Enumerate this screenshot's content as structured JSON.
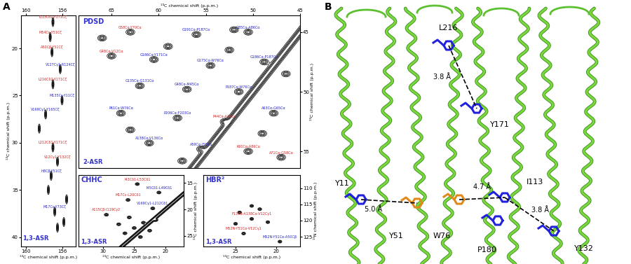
{
  "panel_labels": [
    "A",
    "B"
  ],
  "chart_data": [
    {
      "type": "contour",
      "subtitle": "1,3-ASR",
      "xlabel": "¹³C chemical shift (p.p.m.)",
      "ylabel": "¹³C chemical shift (p.p.m.)",
      "xlim": [
        160.5,
        154.5
      ],
      "ylim": [
        41,
        16.5
      ],
      "xticks": [
        160,
        156
      ],
      "yticks": [
        20,
        25,
        30,
        35,
        40
      ],
      "peaks": [
        {
          "x": 157.0,
          "y": 17.2,
          "label": "I113Cδ1-Y171Cζ",
          "color": "#d02020"
        },
        {
          "x": 157.3,
          "y": 18.8,
          "label": "M54Cε-Y51Cζ",
          "color": "#d02020"
        },
        {
          "x": 157.1,
          "y": 20.4,
          "label": "A50Cβ-Y51Cζ",
          "color": "#d02020"
        },
        {
          "x": 156.2,
          "y": 22.2,
          "label": "V127Cγ1-R124Cζ",
          "color": "#2020c8"
        },
        {
          "x": 157.0,
          "y": 23.8,
          "label": "L216Cδ2-Y171Cζ",
          "color": "#d02020"
        },
        {
          "x": 156.0,
          "y": 25.5,
          "label": "M135Cε-Y11Cζ",
          "color": "#2020c8"
        },
        {
          "x": 157.8,
          "y": 27.0,
          "label": "V169Cγ1-Y165Cζ",
          "color": "#2020c8"
        },
        {
          "x": 157.0,
          "y": 30.5,
          "label": "L212Cδ1-Y171Cζ",
          "color": "#d02020"
        },
        {
          "x": 156.5,
          "y": 32.0,
          "label": "V12Cγ1-Y132Cζ",
          "color": "#d02020"
        },
        {
          "x": 157.2,
          "y": 33.5,
          "label": "H8Cβ-Y51Cζ",
          "color": "#2020c8"
        },
        {
          "x": 156.8,
          "y": 37.3,
          "label": "M17Cε-Y73Cζ",
          "color": "#2020c8"
        },
        {
          "x": 155.5,
          "y": 36.0
        },
        {
          "x": 156.5,
          "y": 39.0
        },
        {
          "x": 155.8,
          "y": 38.4
        },
        {
          "x": 157.5,
          "y": 35.0
        },
        {
          "x": 158.5,
          "y": 28.5
        }
      ]
    },
    {
      "type": "contour",
      "title": "PDSD",
      "subtitle": "2-ASR",
      "xlabel": "¹³C chemical shift (p.p.m.)",
      "ylabel": "¹³C chemical shift (p.p.m.)",
      "xlim": [
        68.5,
        45
      ],
      "ylim": [
        56.4,
        43.6
      ],
      "xticks": [
        65,
        60,
        55,
        50,
        45
      ],
      "yticks": [
        45,
        50,
        55
      ],
      "peaks": [
        {
          "x": 63.0,
          "y": 45.0,
          "label": "G58Cα-Y70Cα",
          "color": "#d02020"
        },
        {
          "x": 56.0,
          "y": 45.2,
          "label": "G191Cα-P187Cα",
          "color": "#2020c8"
        },
        {
          "x": 50.5,
          "y": 45.0,
          "label": "G85Cα-A86Cα",
          "color": "#2020c8"
        },
        {
          "x": 65.0,
          "y": 47.0,
          "label": "G48Cα-V12Cα",
          "color": "#d02020"
        },
        {
          "x": 60.5,
          "y": 47.3,
          "label": "G186Cα-Y171Cα",
          "color": "#2020c8"
        },
        {
          "x": 54.5,
          "y": 47.8,
          "label": "G175Cα-W76Cα",
          "color": "#2020c8"
        },
        {
          "x": 48.8,
          "y": 47.5,
          "label": "G186Cα-P187Cα",
          "color": "#2020c8"
        },
        {
          "x": 62.0,
          "y": 49.5,
          "label": "G135Cα-G131Cα",
          "color": "#2020c8"
        },
        {
          "x": 57.0,
          "y": 49.8,
          "label": "G48Cα-M45Cα",
          "color": "#2020c8"
        },
        {
          "x": 51.5,
          "y": 50.0,
          "label": "P187Cα-W76Cα",
          "color": "#2020c8"
        },
        {
          "x": 64.0,
          "y": 51.8,
          "label": "P61Cα-W76Cα",
          "color": "#2020c8"
        },
        {
          "x": 58.0,
          "y": 52.2,
          "label": "P206Cα-F203Cα",
          "color": "#2020c8"
        },
        {
          "x": 53.0,
          "y": 52.5,
          "label": "P44Cα-A45Cα",
          "color": "#d02020"
        },
        {
          "x": 47.8,
          "y": 51.8,
          "label": "A63Cα-G65Cα",
          "color": "#2020c8"
        },
        {
          "x": 61.0,
          "y": 54.3,
          "label": "A138Cα-V136Cα",
          "color": "#2020c8"
        },
        {
          "x": 55.5,
          "y": 54.8,
          "label": "A59Cα-I56Cα",
          "color": "#2020c8"
        },
        {
          "x": 50.5,
          "y": 55.0,
          "label": "K60Cα-A86Cα",
          "color": "#d02020"
        },
        {
          "x": 47.0,
          "y": 55.5,
          "label": "A71Cα-G58Cα",
          "color": "#d02020"
        },
        {
          "x": 66.0,
          "y": 45.5
        },
        {
          "x": 59.0,
          "y": 46.2
        },
        {
          "x": 52.5,
          "y": 46.5
        },
        {
          "x": 46.5,
          "y": 48.5
        },
        {
          "x": 63.0,
          "y": 53.2
        },
        {
          "x": 49.0,
          "y": 53.5
        },
        {
          "x": 57.5,
          "y": 55.8
        },
        {
          "x": 52.0,
          "y": 44.8
        }
      ]
    },
    {
      "type": "contour",
      "title": "CHHC",
      "subtitle": "1,3-ASR",
      "xlabel": "¹³C chemical shift (p.p.m.)",
      "ylabel": "¹³C chemical shift (p.p.m.)",
      "xlim": [
        34,
        17
      ],
      "ylim": [
        27,
        13.5
      ],
      "xticks": [
        30,
        25,
        20
      ],
      "yticks": [
        15,
        20,
        25
      ],
      "peaks": [
        {
          "x": 24.5,
          "y": 15.2,
          "label": "I43Cδ1-L53Cδ1",
          "color": "#d02020"
        },
        {
          "x": 21.0,
          "y": 16.8,
          "label": "I45Cδ1-L49Cδ1",
          "color": "#2020c8"
        },
        {
          "x": 26.0,
          "y": 18.2,
          "label": "M17Cε-L20Cδ1",
          "color": "#d02020"
        },
        {
          "x": 22.0,
          "y": 19.8,
          "label": "V169Cγ1-L212Cδ1",
          "color": "#2020c8"
        },
        {
          "x": 29.5,
          "y": 21.0,
          "label": "A115Cβ-I119Cγ2",
          "color": "#d02020"
        },
        {
          "x": 23.5,
          "y": 22.5
        },
        {
          "x": 25.0,
          "y": 23.5
        },
        {
          "x": 26.5,
          "y": 24.5
        },
        {
          "x": 22.5,
          "y": 24.0
        },
        {
          "x": 24.0,
          "y": 25.2
        },
        {
          "x": 27.5,
          "y": 22.8
        },
        {
          "x": 21.5,
          "y": 22.0
        },
        {
          "x": 25.8,
          "y": 21.5
        }
      ]
    },
    {
      "type": "contour",
      "title": "HBR²",
      "subtitle": "1,3-ASR",
      "xlabel": "¹³C chemical shift (p.p.m.)",
      "ylabel": "¹⁵N chemical shift (p.p.m.)",
      "xlim": [
        29,
        17
      ],
      "ylim": [
        128,
        106
      ],
      "xticks": [
        25,
        20
      ],
      "yticks": [
        110,
        115,
        120,
        125
      ],
      "peaks": [
        {
          "x": 23.0,
          "y": 119.5,
          "label": "F139N-A138Cα-V12Cγ1",
          "color": "#d02020"
        },
        {
          "x": 24.0,
          "y": 124.0,
          "label": "M52N-Y51Cα-V12Cγ1",
          "color": "#d02020"
        },
        {
          "x": 19.5,
          "y": 126.5,
          "label": "M52N-Y51Cα-A50Cβ",
          "color": "#2020c8"
        },
        {
          "x": 22.0,
          "y": 116.5
        },
        {
          "x": 24.5,
          "y": 117.5
        },
        {
          "x": 21.0,
          "y": 120.5
        },
        {
          "x": 25.0,
          "y": 121.0
        },
        {
          "x": 23.0,
          "y": 115.5
        }
      ]
    }
  ],
  "structure": {
    "residues": [
      {
        "label": "L216",
        "color": "#2222dd"
      },
      {
        "label": "Y171",
        "color": "#2222dd"
      },
      {
        "label": "Y11",
        "color": "#2222dd"
      },
      {
        "label": "Y51",
        "color": "#e08a1a"
      },
      {
        "label": "W76",
        "color": "#e08a1a"
      },
      {
        "label": "I113",
        "color": "#2222dd"
      },
      {
        "label": "P180",
        "color": "#2222dd"
      },
      {
        "label": "Y132",
        "color": "#2222dd"
      }
    ],
    "distances": [
      {
        "label": "3.8 Å",
        "between": [
          "L216",
          "Y171"
        ]
      },
      {
        "label": "5.0 Å",
        "between": [
          "Y11",
          "Y51"
        ]
      },
      {
        "label": "4.7 Å",
        "between": [
          "W76",
          "I113"
        ]
      },
      {
        "label": "3.8 Å",
        "between": [
          "I113",
          "Y132"
        ]
      }
    ]
  }
}
